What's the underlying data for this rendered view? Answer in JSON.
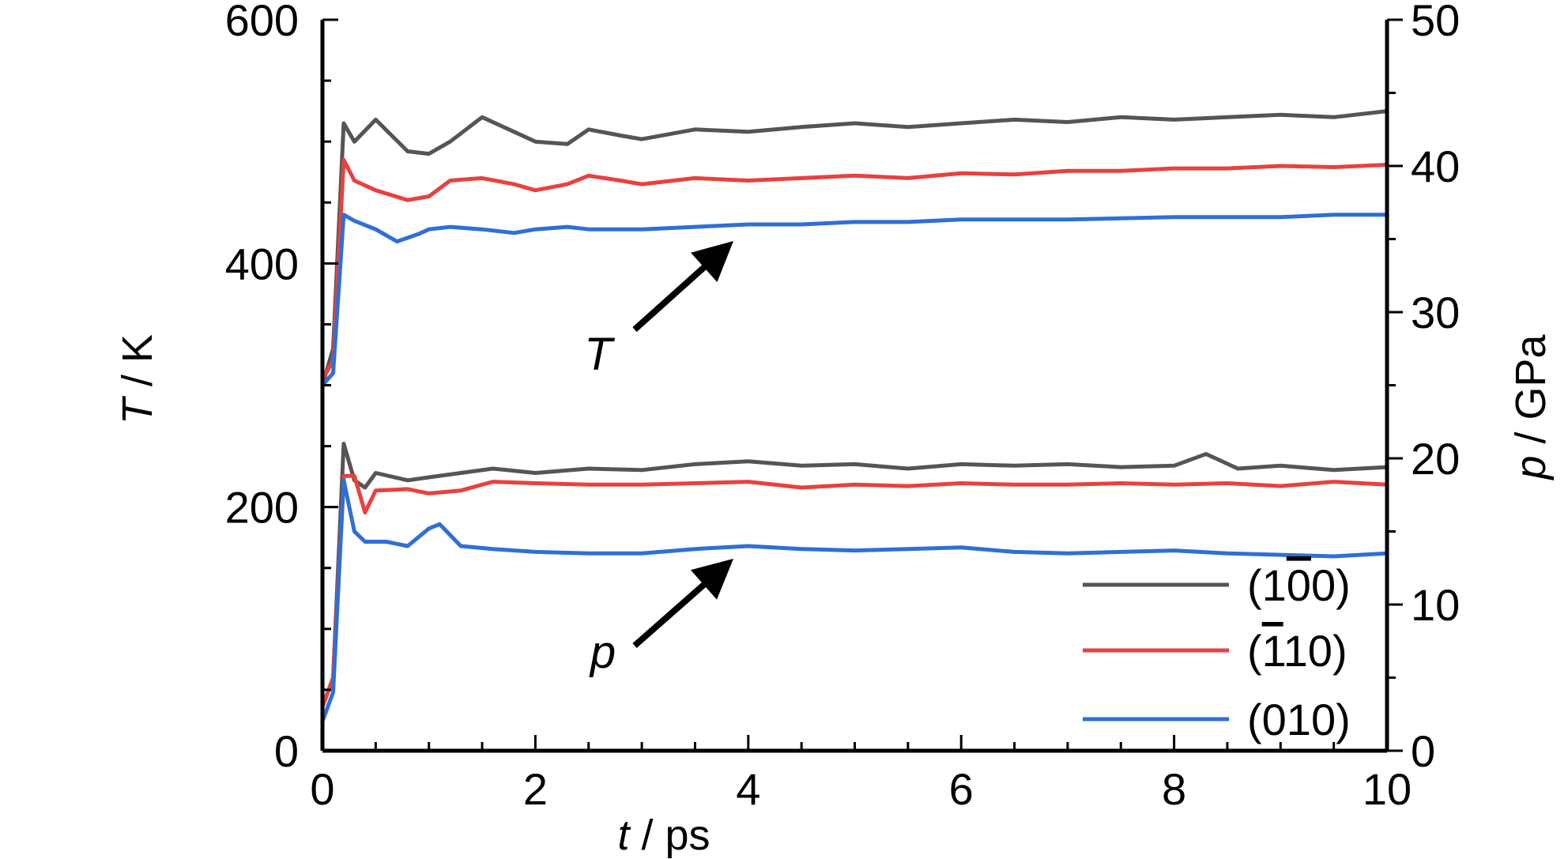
{
  "chart_data": {
    "type": "line",
    "x_axis": {
      "label_var": "t",
      "label_unit": " / ps",
      "range": [
        0,
        10
      ],
      "ticks": [
        "0",
        "2",
        "4",
        "6",
        "8",
        "10"
      ]
    },
    "y_left": {
      "label_var": "T",
      "label_unit": " / K",
      "range": [
        0,
        600
      ],
      "ticks": [
        "0",
        "200",
        "400",
        "600"
      ]
    },
    "y_right": {
      "label_var": "p",
      "label_unit": " / GPa",
      "range": [
        0,
        50
      ],
      "ticks": [
        "0",
        "10",
        "20",
        "30",
        "40",
        "50"
      ]
    },
    "grid": false,
    "legend_position": "bottom-right",
    "legend": [
      {
        "pre": "(1",
        "over": "0",
        "post": "0)",
        "color": "#555555"
      },
      {
        "pre": "(",
        "over": "1",
        "post": "10)",
        "color": "#e8413f"
      },
      {
        "pre": "(010)",
        "over": "",
        "post": "",
        "color": "#2f6fd6"
      }
    ],
    "annotations": [
      {
        "text": "T",
        "points_to": "temperature curves"
      },
      {
        "text": "p",
        "points_to": "pressure curves"
      }
    ],
    "series": [
      {
        "quantity": "T",
        "axis": "left",
        "legend": "(100)",
        "color": "#555555",
        "x": [
          0,
          0.1,
          0.2,
          0.3,
          0.5,
          0.8,
          1.0,
          1.2,
          1.5,
          1.8,
          2.0,
          2.3,
          2.5,
          2.8,
          3.0,
          3.5,
          4.0,
          4.5,
          5.0,
          5.5,
          6.0,
          6.5,
          7.0,
          7.5,
          8.0,
          8.5,
          9.0,
          9.5,
          10.0
        ],
        "y": [
          300,
          330,
          515,
          500,
          518,
          492,
          490,
          500,
          520,
          508,
          500,
          498,
          510,
          505,
          502,
          510,
          508,
          512,
          515,
          512,
          515,
          518,
          516,
          520,
          518,
          520,
          522,
          520,
          525
        ]
      },
      {
        "quantity": "T",
        "axis": "left",
        "legend": "(110)",
        "color": "#e8413f",
        "x": [
          0,
          0.1,
          0.2,
          0.3,
          0.5,
          0.8,
          1.0,
          1.2,
          1.5,
          1.8,
          2.0,
          2.3,
          2.5,
          2.8,
          3.0,
          3.5,
          4.0,
          4.5,
          5.0,
          5.5,
          6.0,
          6.5,
          7.0,
          7.5,
          8.0,
          8.5,
          9.0,
          9.5,
          10.0
        ],
        "y": [
          305,
          320,
          485,
          468,
          460,
          452,
          455,
          468,
          470,
          465,
          460,
          465,
          472,
          468,
          465,
          470,
          468,
          470,
          472,
          470,
          474,
          473,
          476,
          476,
          478,
          478,
          480,
          479,
          481
        ]
      },
      {
        "quantity": "T",
        "axis": "left",
        "legend": "(010)",
        "color": "#2f6fd6",
        "x": [
          0,
          0.1,
          0.2,
          0.3,
          0.5,
          0.7,
          0.9,
          1.0,
          1.2,
          1.5,
          1.8,
          2.0,
          2.3,
          2.5,
          2.8,
          3.0,
          3.5,
          4.0,
          4.5,
          5.0,
          5.5,
          6.0,
          6.5,
          7.0,
          7.5,
          8.0,
          8.5,
          9.0,
          9.5,
          10.0
        ],
        "y": [
          300,
          310,
          440,
          435,
          428,
          418,
          424,
          428,
          430,
          428,
          425,
          428,
          430,
          428,
          428,
          428,
          430,
          432,
          432,
          434,
          434,
          436,
          436,
          436,
          437,
          438,
          438,
          438,
          440,
          440
        ]
      },
      {
        "quantity": "p",
        "axis": "right",
        "legend": "(100)",
        "color": "#555555",
        "x": [
          0,
          0.1,
          0.2,
          0.3,
          0.4,
          0.5,
          0.8,
          1.0,
          1.3,
          1.6,
          2.0,
          2.5,
          3.0,
          3.5,
          4.0,
          4.5,
          5.0,
          5.5,
          6.0,
          6.5,
          7.0,
          7.5,
          8.0,
          8.3,
          8.6,
          9.0,
          9.5,
          10.0
        ],
        "y": [
          3,
          5,
          21.0,
          18.5,
          18.0,
          19.0,
          18.5,
          18.7,
          19.0,
          19.3,
          19.0,
          19.3,
          19.2,
          19.6,
          19.8,
          19.5,
          19.6,
          19.3,
          19.6,
          19.5,
          19.6,
          19.4,
          19.5,
          20.3,
          19.3,
          19.5,
          19.2,
          19.4
        ]
      },
      {
        "quantity": "p",
        "axis": "right",
        "legend": "(110)",
        "color": "#e8413f",
        "x": [
          0,
          0.1,
          0.2,
          0.3,
          0.4,
          0.5,
          0.8,
          1.0,
          1.3,
          1.6,
          2.0,
          2.5,
          3.0,
          3.5,
          4.0,
          4.5,
          5.0,
          5.5,
          6.0,
          6.5,
          7.0,
          7.5,
          8.0,
          8.5,
          9.0,
          9.5,
          10.0
        ],
        "y": [
          3,
          5,
          18.8,
          18.8,
          16.3,
          17.8,
          17.9,
          17.6,
          17.8,
          18.4,
          18.3,
          18.2,
          18.2,
          18.3,
          18.4,
          18.0,
          18.2,
          18.1,
          18.3,
          18.2,
          18.2,
          18.3,
          18.2,
          18.3,
          18.1,
          18.4,
          18.2
        ]
      },
      {
        "quantity": "p",
        "axis": "right",
        "legend": "(010)",
        "color": "#2f6fd6",
        "x": [
          0,
          0.1,
          0.2,
          0.3,
          0.4,
          0.6,
          0.8,
          1.0,
          1.1,
          1.3,
          1.6,
          2.0,
          2.5,
          3.0,
          3.5,
          4.0,
          4.5,
          5.0,
          5.5,
          6.0,
          6.5,
          7.0,
          7.5,
          8.0,
          8.5,
          9.0,
          9.5,
          10.0
        ],
        "y": [
          2,
          4,
          18.5,
          15.0,
          14.3,
          14.3,
          14.0,
          15.2,
          15.5,
          14.0,
          13.8,
          13.6,
          13.5,
          13.5,
          13.8,
          14.0,
          13.8,
          13.7,
          13.8,
          13.9,
          13.6,
          13.5,
          13.6,
          13.7,
          13.5,
          13.4,
          13.3,
          13.5
        ]
      }
    ]
  }
}
